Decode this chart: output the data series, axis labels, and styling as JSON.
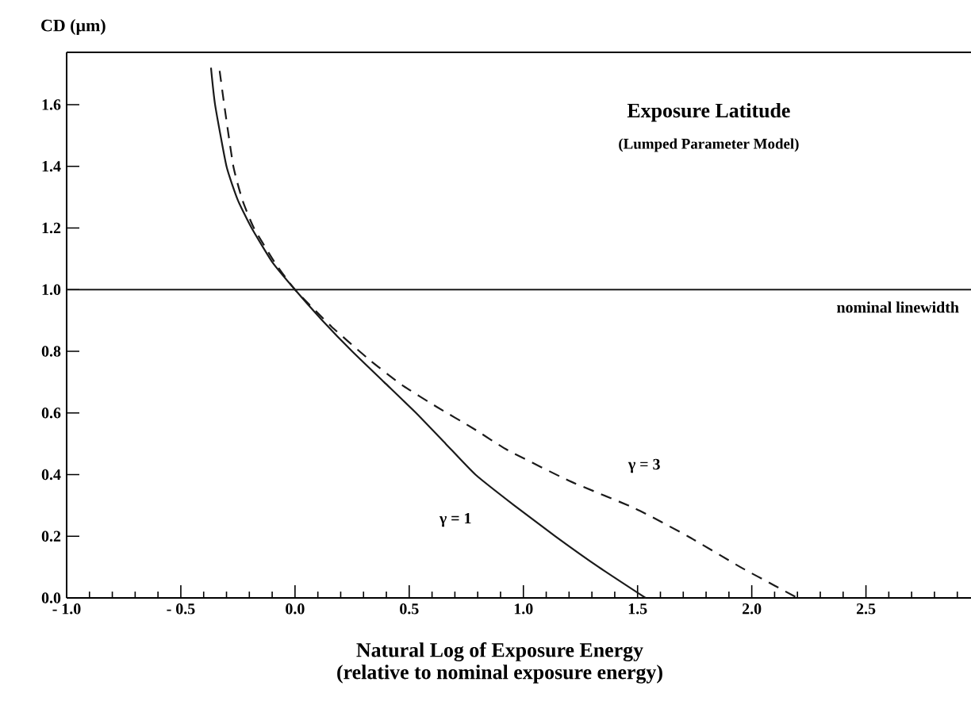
{
  "chart_data": {
    "type": "line",
    "title": "Exposure Latitude",
    "subtitle": "(Lumped Parameter Model)",
    "xlabel": "Natural Log of Exposure Energy",
    "ylabel": "CD (µm)",
    "annotations": [
      "(relative to nominal exposure energy)"
    ],
    "xlim": [
      -1.0,
      2.96
    ],
    "ylim": [
      0,
      1.77
    ],
    "xticks": [
      {
        "value": -1.0,
        "label": "- 1.0"
      },
      {
        "value": -0.9,
        "label": null
      },
      {
        "value": -0.8,
        "label": null
      },
      {
        "value": -0.7,
        "label": null
      },
      {
        "value": -0.6,
        "label": null
      },
      {
        "value": -0.5,
        "label": "- 0.5"
      },
      {
        "value": -0.4,
        "label": null
      },
      {
        "value": -0.3,
        "label": null
      },
      {
        "value": -0.2,
        "label": null
      },
      {
        "value": -0.1,
        "label": null
      },
      {
        "value": 0,
        "label": "0.0"
      },
      {
        "value": 0.1,
        "label": null
      },
      {
        "value": 0.2,
        "label": null
      },
      {
        "value": 0.3,
        "label": null
      },
      {
        "value": 0.4,
        "label": null
      },
      0.5,
      {
        "value": 0.6,
        "label": null
      },
      {
        "value": 0.7,
        "label": null
      },
      {
        "value": 0.8,
        "label": null
      },
      {
        "value": 0.9,
        "label": null
      },
      {
        "value": 1,
        "label": "1.0"
      },
      {
        "value": 1.1,
        "label": null
      },
      {
        "value": 1.2,
        "label": null
      },
      {
        "value": 1.3,
        "label": null
      },
      {
        "value": 1.4,
        "label": null
      },
      1.5,
      {
        "value": 1.6,
        "label": null
      },
      {
        "value": 1.7,
        "label": null
      },
      {
        "value": 1.8,
        "label": null
      },
      {
        "value": 1.9,
        "label": null
      },
      {
        "value": 2,
        "label": "2.0"
      },
      {
        "value": 2.1,
        "label": null
      },
      {
        "value": 2.2,
        "label": null
      },
      {
        "value": 2.3,
        "label": null
      },
      {
        "value": 2.4,
        "label": null
      },
      2.5,
      {
        "value": 2.6,
        "label": null
      },
      {
        "value": 2.7,
        "label": null
      },
      {
        "value": 2.8,
        "label": null
      },
      {
        "value": 2.9,
        "label": null
      }
    ],
    "yticks": [
      {
        "value": 0,
        "label": "0.0"
      },
      0.2,
      0.4,
      0.6,
      0.8,
      {
        "value": 1,
        "label": "1.0"
      },
      1.2,
      1.4,
      1.6
    ],
    "marker": "none",
    "series": [
      {
        "name": "γ = 1",
        "color": "#1a1a1a",
        "line_style": "solid",
        "x": [
          -0.368,
          -0.35,
          -0.3,
          -0.25,
          -0.19,
          -0.1,
          0,
          0.12,
          0.25,
          0.39,
          0.53,
          0.66,
          0.79,
          0.96,
          1.14,
          1.33,
          1.535
        ],
        "values": [
          1.72,
          1.6,
          1.4,
          1.29,
          1.2,
          1.09,
          1.0,
          0.9,
          0.8,
          0.7,
          0.6,
          0.5,
          0.4,
          0.3,
          0.2,
          0.1,
          0
        ]
      },
      {
        "name": "γ = 3",
        "color": "#1a1a1a",
        "line_style": "dashed",
        "x": [
          -0.33,
          -0.31,
          -0.27,
          -0.23,
          -0.18,
          -0.09,
          0,
          0.16,
          0.33,
          0.47,
          0.62,
          0.78,
          0.93,
          1.2,
          1.49,
          1.72,
          1.95,
          2.1,
          2.2
        ],
        "values": [
          1.71,
          1.6,
          1.4,
          1.29,
          1.2,
          1.09,
          1.0,
          0.88,
          0.77,
          0.69,
          0.62,
          0.55,
          0.48,
          0.38,
          0.29,
          0.2,
          0.1,
          0.04,
          0
        ]
      }
    ],
    "ref_lines": [
      {
        "axis": "y",
        "value": 1.0,
        "label": "nominal linewidth",
        "color": "#1a1a1a"
      }
    ]
  }
}
